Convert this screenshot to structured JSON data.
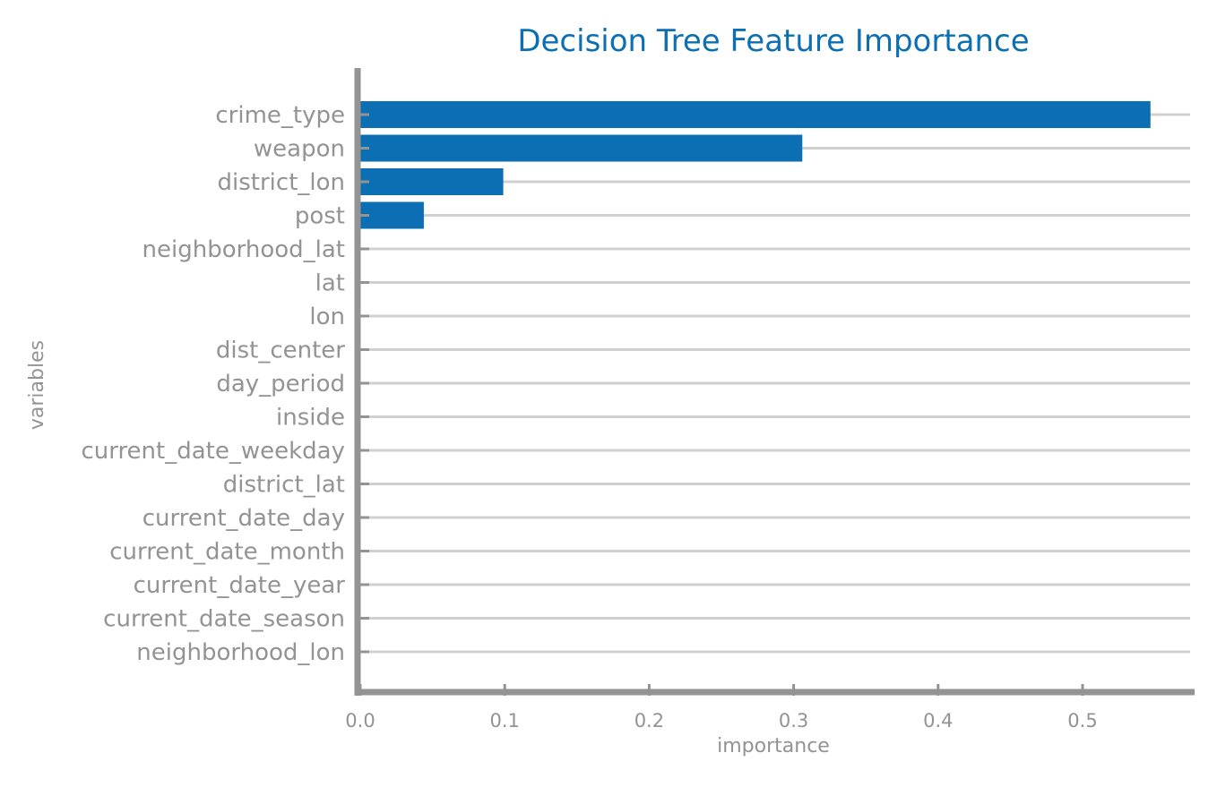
{
  "colors": {
    "bar": "#0d6fb3",
    "title": "#0d6fb3",
    "axis": "#939393",
    "text": "#939393",
    "grid": "#d0d0d0"
  },
  "chart_data": {
    "type": "bar",
    "orientation": "horizontal",
    "title": "Decision Tree Feature Importance",
    "xlabel": "importance",
    "ylabel": "variables",
    "xlim": [
      0,
      0.577
    ],
    "xticks": [
      0.0,
      0.1,
      0.2,
      0.3,
      0.4,
      0.5
    ],
    "xtick_labels": [
      "0.0",
      "0.1",
      "0.2",
      "0.3",
      "0.4",
      "0.5"
    ],
    "grid": "horizontal lines at each category",
    "categories": [
      "crime_type",
      "weapon",
      "district_lon",
      "post",
      "neighborhood_lat",
      "lat",
      "lon",
      "dist_center",
      "day_period",
      "inside",
      "current_date_weekday",
      "district_lat",
      "current_date_day",
      "current_date_month",
      "current_date_year",
      "current_date_season",
      "neighborhood_lon"
    ],
    "values": [
      0.547,
      0.306,
      0.099,
      0.044,
      0,
      0,
      0,
      0,
      0,
      0,
      0,
      0,
      0,
      0,
      0,
      0,
      0
    ]
  }
}
